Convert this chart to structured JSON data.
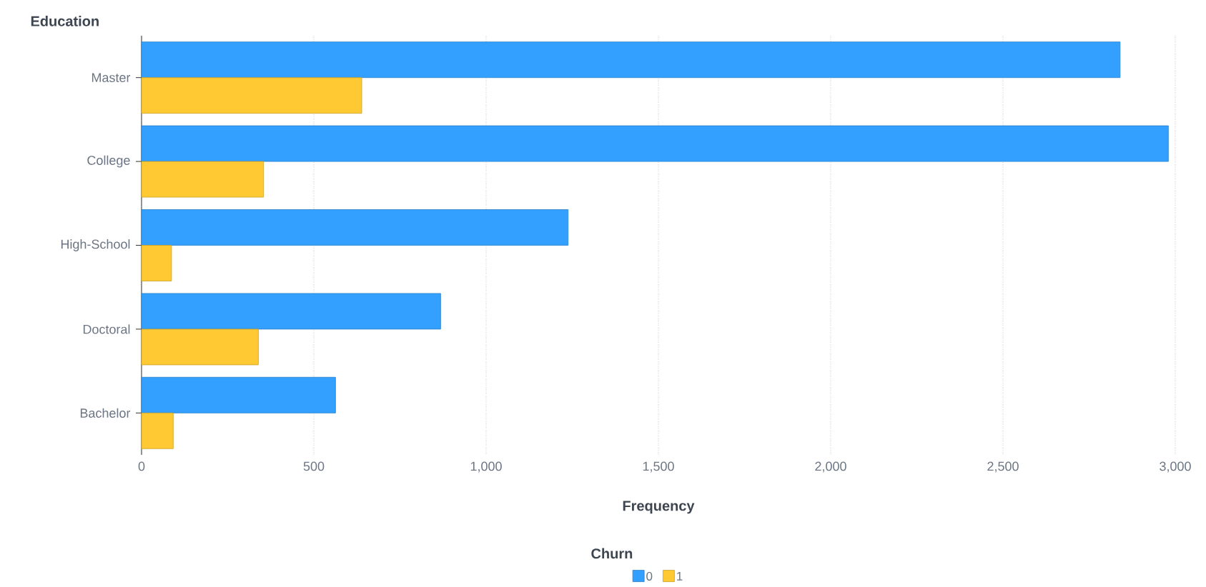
{
  "chart_data": {
    "type": "bar",
    "orientation": "horizontal",
    "ylabel": "Education",
    "xlabel": "Frequency",
    "legend_title": "Churn",
    "categories": [
      "Master",
      "College",
      "High-School",
      "Doctoral",
      "Bachelor"
    ],
    "series": [
      {
        "name": "0",
        "color": "#33a0ff",
        "values": [
          2840,
          2980,
          1238,
          868,
          563
        ]
      },
      {
        "name": "1",
        "color": "#ffc933",
        "values": [
          639,
          354,
          87,
          339,
          92
        ]
      }
    ],
    "xlim": [
      0,
      3000
    ],
    "xticks": [
      0,
      500,
      {
        "value": 1000,
        "label": "1,000"
      },
      {
        "value": 1500,
        "label": "1,500"
      },
      {
        "value": 2000,
        "label": "2,000"
      },
      {
        "value": 2500,
        "label": "2,500"
      },
      {
        "value": 3000,
        "label": "3,000"
      }
    ],
    "grid": "x",
    "legend": "bottom"
  }
}
